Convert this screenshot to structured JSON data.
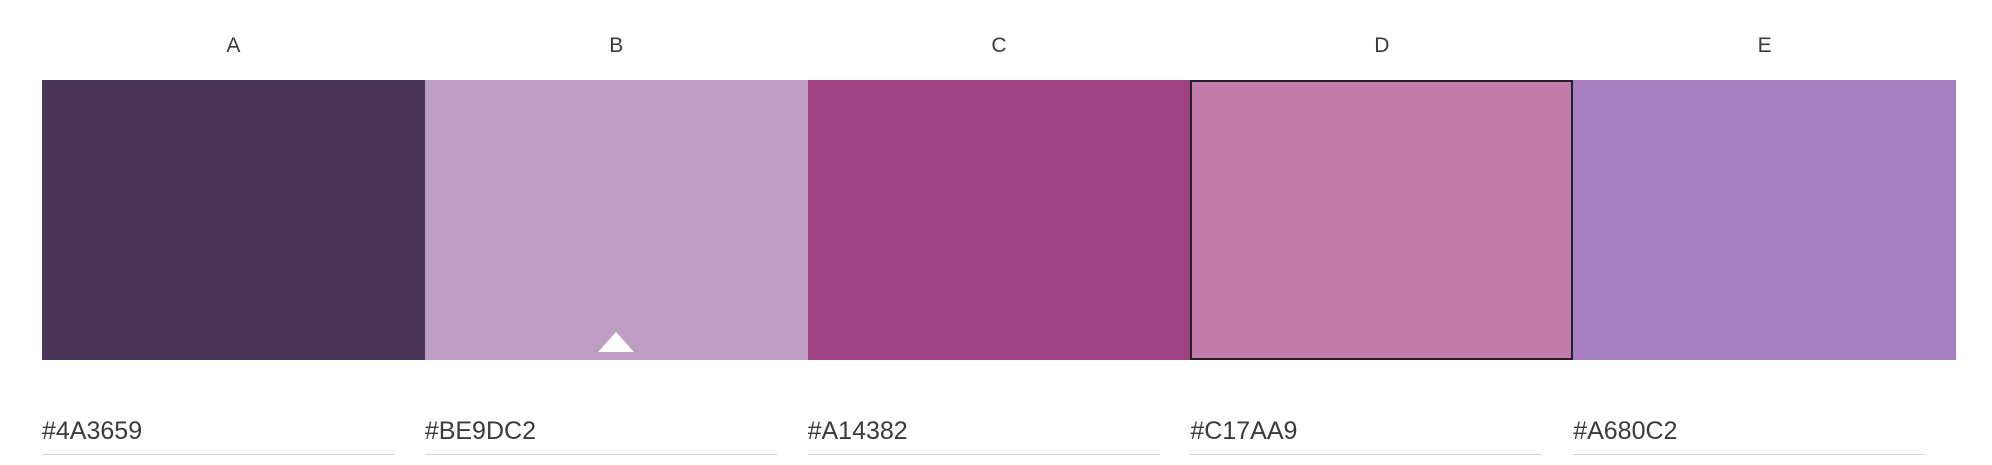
{
  "palette": {
    "swatches": [
      {
        "label": "A",
        "hex": "#4A3659",
        "color": "#4A3659"
      },
      {
        "label": "B",
        "hex": "#BE9DC2",
        "color": "#BE9DC2"
      },
      {
        "label": "C",
        "hex": "#A14382",
        "color": "#A14382"
      },
      {
        "label": "D",
        "hex": "#C17AA9",
        "color": "#C17AA9"
      },
      {
        "label": "E",
        "hex": "#A680C2",
        "color": "#A680C2"
      }
    ],
    "selected_index": 3,
    "base_marker_index": 1
  }
}
